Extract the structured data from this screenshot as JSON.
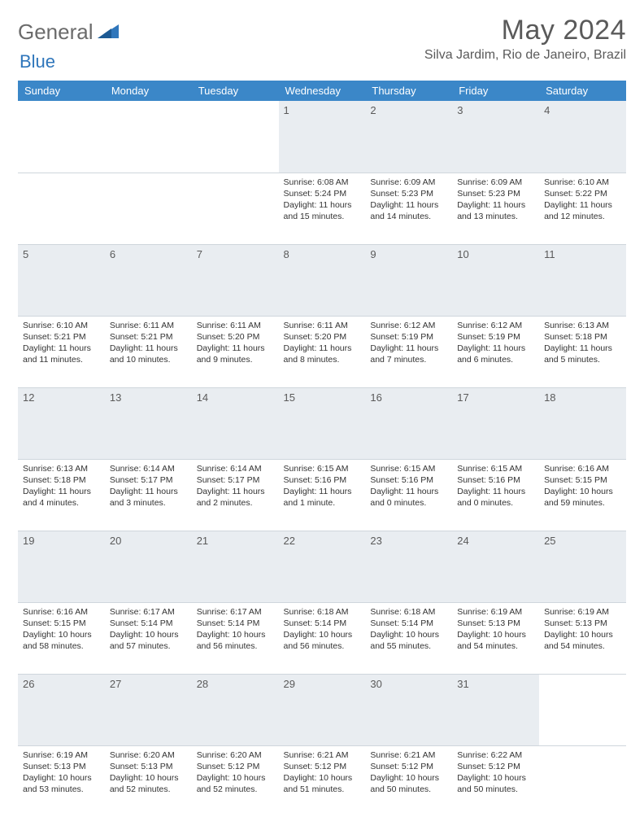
{
  "brand": {
    "part1": "General",
    "part2": "Blue"
  },
  "title": "May 2024",
  "location": "Silva Jardim, Rio de Janeiro, Brazil",
  "colors": {
    "header_bg": "#3b87c8",
    "header_text": "#ffffff",
    "daynum_bg": "#e9edf1",
    "text_muted": "#5a5a5a",
    "border": "#cfd6dc",
    "brand_gray": "#6b6b6b",
    "brand_blue": "#2f76bb"
  },
  "weekdays": [
    "Sunday",
    "Monday",
    "Tuesday",
    "Wednesday",
    "Thursday",
    "Friday",
    "Saturday"
  ],
  "weeks": [
    {
      "nums": [
        "",
        "",
        "",
        "1",
        "2",
        "3",
        "4"
      ],
      "cells": [
        null,
        null,
        null,
        {
          "sunrise": "Sunrise: 6:08 AM",
          "sunset": "Sunset: 5:24 PM",
          "d1": "Daylight: 11 hours",
          "d2": "and 15 minutes."
        },
        {
          "sunrise": "Sunrise: 6:09 AM",
          "sunset": "Sunset: 5:23 PM",
          "d1": "Daylight: 11 hours",
          "d2": "and 14 minutes."
        },
        {
          "sunrise": "Sunrise: 6:09 AM",
          "sunset": "Sunset: 5:23 PM",
          "d1": "Daylight: 11 hours",
          "d2": "and 13 minutes."
        },
        {
          "sunrise": "Sunrise: 6:10 AM",
          "sunset": "Sunset: 5:22 PM",
          "d1": "Daylight: 11 hours",
          "d2": "and 12 minutes."
        }
      ]
    },
    {
      "nums": [
        "5",
        "6",
        "7",
        "8",
        "9",
        "10",
        "11"
      ],
      "cells": [
        {
          "sunrise": "Sunrise: 6:10 AM",
          "sunset": "Sunset: 5:21 PM",
          "d1": "Daylight: 11 hours",
          "d2": "and 11 minutes."
        },
        {
          "sunrise": "Sunrise: 6:11 AM",
          "sunset": "Sunset: 5:21 PM",
          "d1": "Daylight: 11 hours",
          "d2": "and 10 minutes."
        },
        {
          "sunrise": "Sunrise: 6:11 AM",
          "sunset": "Sunset: 5:20 PM",
          "d1": "Daylight: 11 hours",
          "d2": "and 9 minutes."
        },
        {
          "sunrise": "Sunrise: 6:11 AM",
          "sunset": "Sunset: 5:20 PM",
          "d1": "Daylight: 11 hours",
          "d2": "and 8 minutes."
        },
        {
          "sunrise": "Sunrise: 6:12 AM",
          "sunset": "Sunset: 5:19 PM",
          "d1": "Daylight: 11 hours",
          "d2": "and 7 minutes."
        },
        {
          "sunrise": "Sunrise: 6:12 AM",
          "sunset": "Sunset: 5:19 PM",
          "d1": "Daylight: 11 hours",
          "d2": "and 6 minutes."
        },
        {
          "sunrise": "Sunrise: 6:13 AM",
          "sunset": "Sunset: 5:18 PM",
          "d1": "Daylight: 11 hours",
          "d2": "and 5 minutes."
        }
      ]
    },
    {
      "nums": [
        "12",
        "13",
        "14",
        "15",
        "16",
        "17",
        "18"
      ],
      "cells": [
        {
          "sunrise": "Sunrise: 6:13 AM",
          "sunset": "Sunset: 5:18 PM",
          "d1": "Daylight: 11 hours",
          "d2": "and 4 minutes."
        },
        {
          "sunrise": "Sunrise: 6:14 AM",
          "sunset": "Sunset: 5:17 PM",
          "d1": "Daylight: 11 hours",
          "d2": "and 3 minutes."
        },
        {
          "sunrise": "Sunrise: 6:14 AM",
          "sunset": "Sunset: 5:17 PM",
          "d1": "Daylight: 11 hours",
          "d2": "and 2 minutes."
        },
        {
          "sunrise": "Sunrise: 6:15 AM",
          "sunset": "Sunset: 5:16 PM",
          "d1": "Daylight: 11 hours",
          "d2": "and 1 minute."
        },
        {
          "sunrise": "Sunrise: 6:15 AM",
          "sunset": "Sunset: 5:16 PM",
          "d1": "Daylight: 11 hours",
          "d2": "and 0 minutes."
        },
        {
          "sunrise": "Sunrise: 6:15 AM",
          "sunset": "Sunset: 5:16 PM",
          "d1": "Daylight: 11 hours",
          "d2": "and 0 minutes."
        },
        {
          "sunrise": "Sunrise: 6:16 AM",
          "sunset": "Sunset: 5:15 PM",
          "d1": "Daylight: 10 hours",
          "d2": "and 59 minutes."
        }
      ]
    },
    {
      "nums": [
        "19",
        "20",
        "21",
        "22",
        "23",
        "24",
        "25"
      ],
      "cells": [
        {
          "sunrise": "Sunrise: 6:16 AM",
          "sunset": "Sunset: 5:15 PM",
          "d1": "Daylight: 10 hours",
          "d2": "and 58 minutes."
        },
        {
          "sunrise": "Sunrise: 6:17 AM",
          "sunset": "Sunset: 5:14 PM",
          "d1": "Daylight: 10 hours",
          "d2": "and 57 minutes."
        },
        {
          "sunrise": "Sunrise: 6:17 AM",
          "sunset": "Sunset: 5:14 PM",
          "d1": "Daylight: 10 hours",
          "d2": "and 56 minutes."
        },
        {
          "sunrise": "Sunrise: 6:18 AM",
          "sunset": "Sunset: 5:14 PM",
          "d1": "Daylight: 10 hours",
          "d2": "and 56 minutes."
        },
        {
          "sunrise": "Sunrise: 6:18 AM",
          "sunset": "Sunset: 5:14 PM",
          "d1": "Daylight: 10 hours",
          "d2": "and 55 minutes."
        },
        {
          "sunrise": "Sunrise: 6:19 AM",
          "sunset": "Sunset: 5:13 PM",
          "d1": "Daylight: 10 hours",
          "d2": "and 54 minutes."
        },
        {
          "sunrise": "Sunrise: 6:19 AM",
          "sunset": "Sunset: 5:13 PM",
          "d1": "Daylight: 10 hours",
          "d2": "and 54 minutes."
        }
      ]
    },
    {
      "nums": [
        "26",
        "27",
        "28",
        "29",
        "30",
        "31",
        ""
      ],
      "cells": [
        {
          "sunrise": "Sunrise: 6:19 AM",
          "sunset": "Sunset: 5:13 PM",
          "d1": "Daylight: 10 hours",
          "d2": "and 53 minutes."
        },
        {
          "sunrise": "Sunrise: 6:20 AM",
          "sunset": "Sunset: 5:13 PM",
          "d1": "Daylight: 10 hours",
          "d2": "and 52 minutes."
        },
        {
          "sunrise": "Sunrise: 6:20 AM",
          "sunset": "Sunset: 5:12 PM",
          "d1": "Daylight: 10 hours",
          "d2": "and 52 minutes."
        },
        {
          "sunrise": "Sunrise: 6:21 AM",
          "sunset": "Sunset: 5:12 PM",
          "d1": "Daylight: 10 hours",
          "d2": "and 51 minutes."
        },
        {
          "sunrise": "Sunrise: 6:21 AM",
          "sunset": "Sunset: 5:12 PM",
          "d1": "Daylight: 10 hours",
          "d2": "and 50 minutes."
        },
        {
          "sunrise": "Sunrise: 6:22 AM",
          "sunset": "Sunset: 5:12 PM",
          "d1": "Daylight: 10 hours",
          "d2": "and 50 minutes."
        },
        null
      ]
    }
  ]
}
